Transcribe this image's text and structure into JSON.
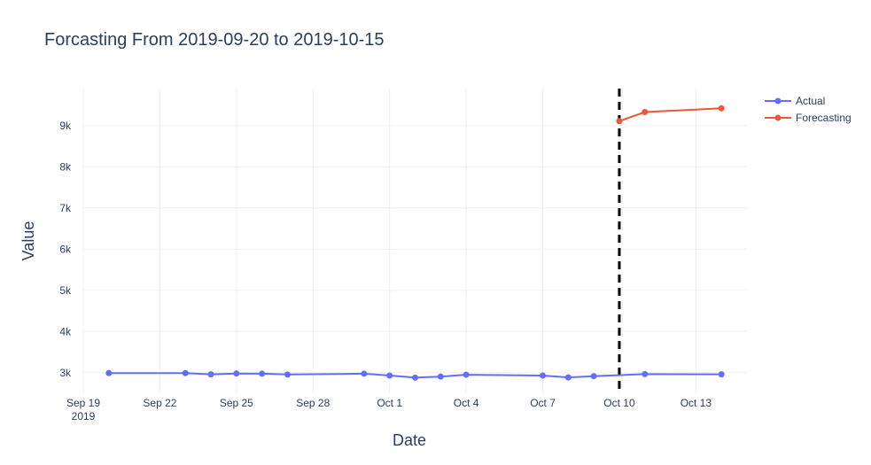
{
  "chart_data": {
    "type": "line",
    "title": "Forcasting From 2019-09-20 to 2019-10-15",
    "xlabel": "Date",
    "ylabel": "Value",
    "xlim": [
      "2019-09-19",
      "2019-10-15"
    ],
    "ylim": [
      2500,
      9900
    ],
    "grid": true,
    "legend_placement": "top-right",
    "x_ticks": [
      {
        "date": "2019-09-19",
        "label": "Sep 19",
        "sublabel": "2019"
      },
      {
        "date": "2019-09-22",
        "label": "Sep 22"
      },
      {
        "date": "2019-09-25",
        "label": "Sep 25"
      },
      {
        "date": "2019-09-28",
        "label": "Sep 28"
      },
      {
        "date": "2019-10-01",
        "label": "Oct 1"
      },
      {
        "date": "2019-10-04",
        "label": "Oct 4"
      },
      {
        "date": "2019-10-07",
        "label": "Oct 7"
      },
      {
        "date": "2019-10-10",
        "label": "Oct 10"
      },
      {
        "date": "2019-10-13",
        "label": "Oct 13"
      }
    ],
    "y_ticks": [
      {
        "value": 3000,
        "label": "3k"
      },
      {
        "value": 4000,
        "label": "4k"
      },
      {
        "value": 5000,
        "label": "5k"
      },
      {
        "value": 6000,
        "label": "6k"
      },
      {
        "value": 7000,
        "label": "7k"
      },
      {
        "value": 8000,
        "label": "8k"
      },
      {
        "value": 9000,
        "label": "9k"
      }
    ],
    "vertical_line": {
      "date": "2019-10-10",
      "style": "dashed",
      "color": "#000000"
    },
    "series": [
      {
        "name": "Actual",
        "color": "#636efa",
        "points": [
          {
            "x": "2019-09-20",
            "y": 2990
          },
          {
            "x": "2019-09-23",
            "y": 2990
          },
          {
            "x": "2019-09-24",
            "y": 2960
          },
          {
            "x": "2019-09-25",
            "y": 2980
          },
          {
            "x": "2019-09-26",
            "y": 2975
          },
          {
            "x": "2019-09-27",
            "y": 2955
          },
          {
            "x": "2019-09-30",
            "y": 2975
          },
          {
            "x": "2019-10-01",
            "y": 2930
          },
          {
            "x": "2019-10-02",
            "y": 2880
          },
          {
            "x": "2019-10-03",
            "y": 2905
          },
          {
            "x": "2019-10-04",
            "y": 2950
          },
          {
            "x": "2019-10-07",
            "y": 2930
          },
          {
            "x": "2019-10-08",
            "y": 2885
          },
          {
            "x": "2019-10-09",
            "y": 2915
          },
          {
            "x": "2019-10-11",
            "y": 2965
          },
          {
            "x": "2019-10-14",
            "y": 2960
          }
        ]
      },
      {
        "name": "Forecasting",
        "color": "#ef553b",
        "points": [
          {
            "x": "2019-10-10",
            "y": 9110
          },
          {
            "x": "2019-10-11",
            "y": 9330
          },
          {
            "x": "2019-10-14",
            "y": 9420
          }
        ]
      }
    ]
  }
}
